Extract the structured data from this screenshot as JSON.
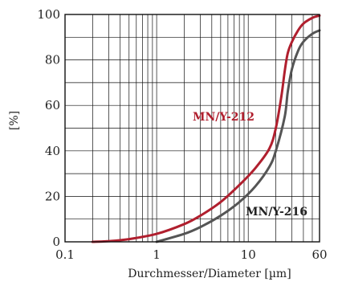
{
  "chart_data": {
    "type": "line",
    "xlabel": "Durchmesser/Diameter  [µm]",
    "ylabel": "[%]",
    "x_scale": "log",
    "xlim": [
      0.1,
      60
    ],
    "ylim": [
      0,
      100
    ],
    "x_ticks": [
      0.1,
      1,
      10,
      60
    ],
    "x_tick_labels": [
      "0.1",
      "1",
      "10",
      "60"
    ],
    "y_ticks": [
      0,
      20,
      40,
      60,
      80,
      100
    ],
    "y_tick_labels": [
      "0",
      "20",
      "40",
      "60",
      "80",
      "100"
    ],
    "grid": true,
    "series": [
      {
        "name": "MN/Y-212",
        "color": "#b01f2e",
        "x": [
          0.2,
          0.3,
          0.5,
          1,
          2,
          3,
          5,
          8,
          12,
          17,
          20,
          23,
          25,
          27,
          30,
          35,
          40,
          50,
          60
        ],
        "y": [
          0,
          0.3,
          1.2,
          3.5,
          7.8,
          11.5,
          17.5,
          25,
          32.5,
          41,
          50,
          64,
          75,
          83,
          88,
          93,
          96,
          98.5,
          99.5
        ]
      },
      {
        "name": "MN/Y-216",
        "color": "#555555",
        "x": [
          1,
          2,
          3,
          5,
          8,
          12,
          17,
          20,
          25,
          27,
          30,
          35,
          40,
          50,
          60
        ],
        "y": [
          0,
          3.5,
          6.5,
          11.5,
          17.5,
          24.5,
          33,
          40,
          55,
          66,
          76,
          84,
          88,
          91.5,
          93
        ]
      }
    ],
    "annotations": [
      "MN/Y-212",
      "MN/Y-216"
    ]
  }
}
